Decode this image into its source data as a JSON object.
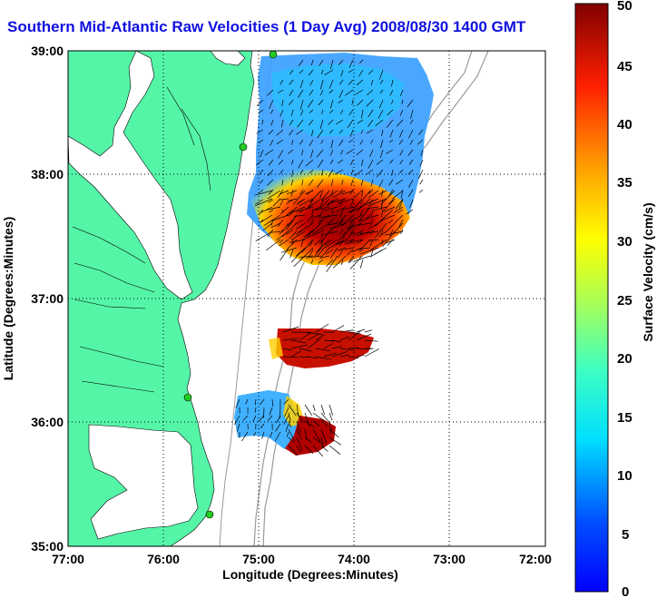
{
  "title": "Southern Mid-Atlantic Raw Velocities (1 Day Avg) 2008/08/30 1400 GMT",
  "xlabel": "Longitude (Degrees:Minutes)",
  "ylabel": "Latitude (Degrees:Minutes)",
  "colorbar_label": "Surface Velocity (cm/s)",
  "x_ticks": [
    "77:00",
    "76:00",
    "75:00",
    "74:00",
    "73:00",
    "72:00"
  ],
  "y_ticks": [
    "39:00",
    "38:00",
    "37:00",
    "36:00",
    "35:00"
  ],
  "colorbar_ticks": [
    "50",
    "45",
    "40",
    "35",
    "30",
    "25",
    "20",
    "15",
    "10",
    "5",
    "0"
  ],
  "colors": {
    "land": "#55f5a8",
    "title": "#1010e0",
    "bathymetry": "#9a9a9a",
    "station": "#22cc22"
  },
  "chart_data": {
    "type": "heatmap",
    "title": "Southern Mid-Atlantic Raw Velocities (1 Day Avg) 2008/08/30 1400 GMT",
    "xlabel": "Longitude (Degrees:Minutes)",
    "ylabel": "Latitude (Degrees:Minutes)",
    "xlim": [
      -77,
      -72
    ],
    "ylim": [
      35,
      39
    ],
    "grid": true,
    "colorbar": {
      "label": "Surface Velocity (cm/s)",
      "range": [
        0,
        50
      ],
      "colormap": "jet"
    },
    "stations": [
      {
        "lon": -75.12,
        "lat": 38.98
      },
      {
        "lon": -75.16,
        "lat": 38.23
      },
      {
        "lon": -75.75,
        "lat": 36.2
      },
      {
        "lon": -75.55,
        "lat": 35.23
      }
    ]
  }
}
